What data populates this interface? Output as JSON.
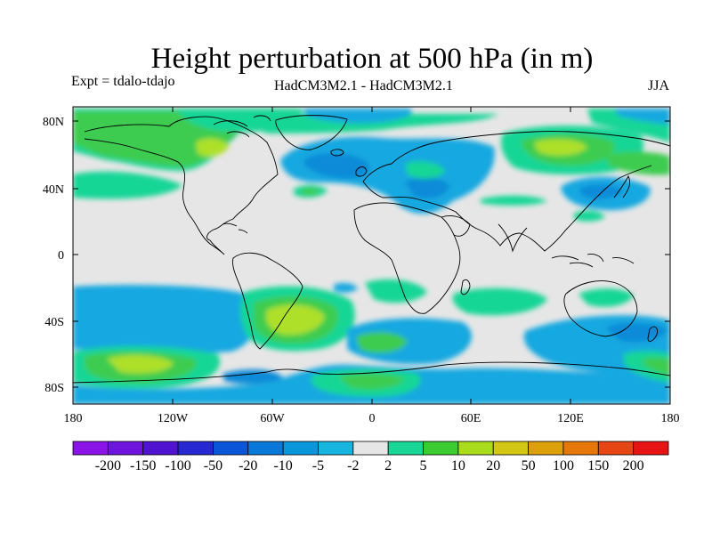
{
  "title": "Height perturbation at 500 hPa (in m)",
  "experiment": "Expt = tdalo-tdajo",
  "models": "HadCM3M2.1 - HadCM3M2.1",
  "season": "JJA",
  "map": {
    "lat_labels": [
      "80N",
      "40N",
      "0",
      "40S",
      "80S"
    ],
    "lon_labels": [
      "180",
      "120W",
      "60W",
      "0",
      "60E",
      "120E",
      "180"
    ],
    "background_color": "#e6e6e6",
    "anomaly_regions": [
      {
        "region": "North Pacific / Alaska",
        "level": "5 to 10",
        "color": "#3ccc50"
      },
      {
        "region": "Alaska core",
        "level": "10 to 20",
        "color": "#aee02a"
      },
      {
        "region": "Pacific 40N",
        "level": "2 to 5",
        "color": "#19d696"
      },
      {
        "region": "Canada / Greenland",
        "level": "2 to 5",
        "color": "#19d696"
      },
      {
        "region": "North Atlantic",
        "level": "-10 to -20",
        "color": "#0a8ad8"
      },
      {
        "region": "Siberia",
        "level": "10 to 20",
        "color": "#aee02a"
      },
      {
        "region": "Japan",
        "level": "-5 to -10",
        "color": "#14a8e0"
      },
      {
        "region": "South Atlantic",
        "level": "10 to 20",
        "color": "#aee02a"
      },
      {
        "region": "South Pacific",
        "level": "10 to 20",
        "color": "#aee02a"
      },
      {
        "region": "Southern Ocean",
        "level": "-5 to -10",
        "color": "#14a8e0"
      },
      {
        "region": "Indian Ocean 40S",
        "level": "2 to 5",
        "color": "#19d696"
      }
    ]
  },
  "colorbar": {
    "colors": [
      "#8a14e6",
      "#6f14dc",
      "#5014d0",
      "#2828d2",
      "#0a55d8",
      "#0a78d8",
      "#0a96da",
      "#18b4e0",
      "#e6e6e6",
      "#19d696",
      "#3ccc32",
      "#aadc1e",
      "#d2c814",
      "#dca00a",
      "#e6780a",
      "#e64614",
      "#e61414"
    ],
    "labels": [
      "-200",
      "-150",
      "-100",
      "-50",
      "-20",
      "-10",
      "-5",
      "-2",
      "2",
      "5",
      "10",
      "20",
      "50",
      "100",
      "150",
      "200"
    ]
  }
}
